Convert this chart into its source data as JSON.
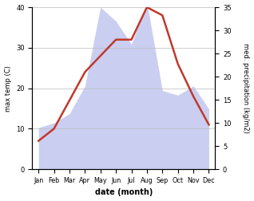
{
  "months": [
    "Jan",
    "Feb",
    "Mar",
    "Apr",
    "May",
    "Jun",
    "Jul",
    "Aug",
    "Sep",
    "Oct",
    "Nov",
    "Dec"
  ],
  "temp": [
    7,
    10,
    17,
    24,
    28,
    32,
    32,
    40,
    38,
    26,
    18,
    11
  ],
  "precip": [
    9,
    10,
    12,
    18,
    35,
    32,
    27,
    36,
    17,
    16,
    18,
    13
  ],
  "temp_color": "#c0392b",
  "precip_color": "#c5caf0",
  "ylim_temp": [
    0,
    40
  ],
  "ylim_precip": [
    0,
    35
  ],
  "yticks_temp": [
    0,
    10,
    20,
    30,
    40
  ],
  "yticks_precip": [
    0,
    5,
    10,
    15,
    20,
    25,
    30,
    35
  ],
  "ylabel_left": "max temp (C)",
  "ylabel_right": "med. precipitation (kg/m2)",
  "xlabel": "date (month)",
  "bg_color": "#ffffff",
  "grid_color": "#bbbbbb"
}
